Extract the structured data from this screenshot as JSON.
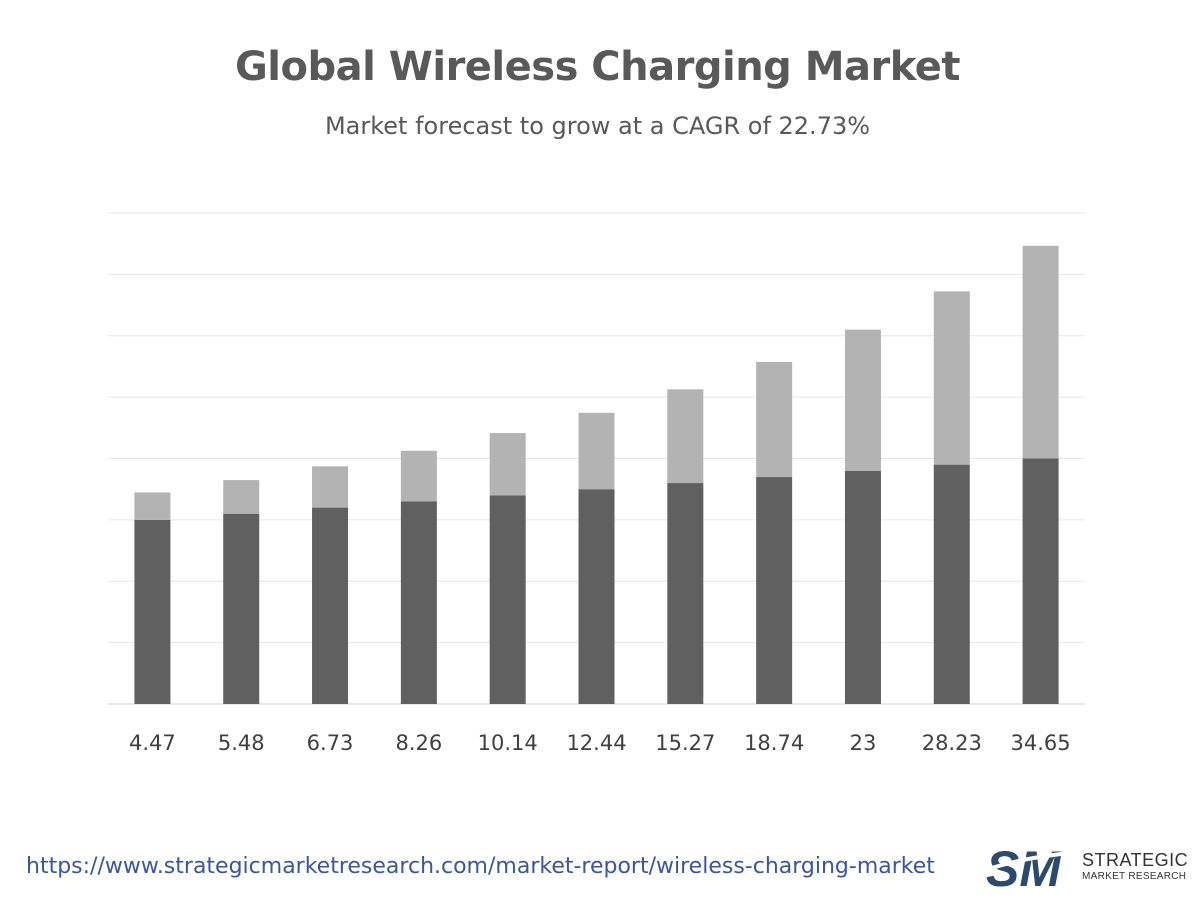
{
  "chart_data": {
    "type": "bar",
    "title": "Global Wireless Charging Market",
    "subtitle": "Market forecast to grow at a CAGR of 22.73%",
    "categories": [
      "4.47",
      "5.48",
      "6.73",
      "8.26",
      "10.14",
      "12.44",
      "15.27",
      "18.74",
      "23",
      "28.23",
      "34.65"
    ],
    "stacked": true,
    "series": [
      {
        "values": [
          30,
          31,
          32,
          33,
          34,
          35,
          36,
          37,
          38,
          39,
          40
        ],
        "color": "#606060"
      },
      {
        "values": [
          4.47,
          5.48,
          6.73,
          8.26,
          10.14,
          12.44,
          15.27,
          18.74,
          23,
          28.23,
          34.65
        ],
        "color": "#b3b3b3"
      }
    ],
    "ylim": [
      0,
      80
    ],
    "grid": true,
    "legend": "none"
  },
  "footer": {
    "url": "https://www.strategicmarketresearch.com/market-report/wireless-charging-market"
  },
  "logo": {
    "mark": "SM",
    "line1": "STRATEGIC",
    "line2": "MARKET RESEARCH"
  }
}
